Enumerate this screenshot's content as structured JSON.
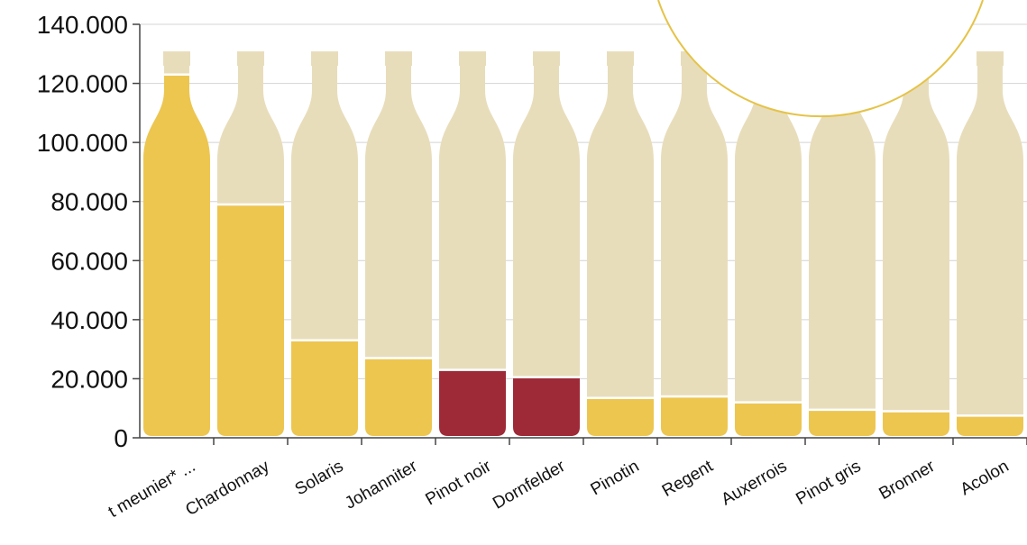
{
  "chart_data": {
    "type": "bar",
    "title": "",
    "xlabel": "",
    "ylabel": "",
    "ylim": [
      0,
      140000
    ],
    "y_ticks": [
      "0",
      "20.000",
      "40.000",
      "60.000",
      "80.000",
      "100.000",
      "120.000",
      "140.000"
    ],
    "grid": true,
    "categories": [
      "Pinot meunier* ...",
      "Chardonnay",
      "Solaris",
      "Johanniter",
      "Pinot noir",
      "Dornfelder",
      "Pinotin",
      "Regent",
      "Auxerrois",
      "Pinot gris",
      "Bronner",
      "Acolon"
    ],
    "visible_category_labels": [
      "t meunier* ...",
      "Chardonnay",
      "Solaris",
      "Johanniter",
      "Pinot noir",
      "Dornfelder",
      "Pinotin",
      "Regent",
      "Auxerrois",
      "Pinot gris",
      "Bronner",
      "Acolon"
    ],
    "values": [
      123000,
      79000,
      33000,
      27000,
      23000,
      20500,
      13500,
      14000,
      12000,
      9500,
      9000,
      7500
    ],
    "wine_type": [
      "white",
      "white",
      "white",
      "white",
      "red",
      "red",
      "white",
      "white",
      "white",
      "white",
      "white",
      "white"
    ],
    "bottle_capacity": 130000
  },
  "colors": {
    "white_wine": "#EDC650",
    "red_wine": "#9E2A38",
    "bottle_empty": "#E8DDBB",
    "grid": "#D4D4D4",
    "axis": "#444444",
    "text": "#111111",
    "callout_circle": "#E5C348"
  }
}
